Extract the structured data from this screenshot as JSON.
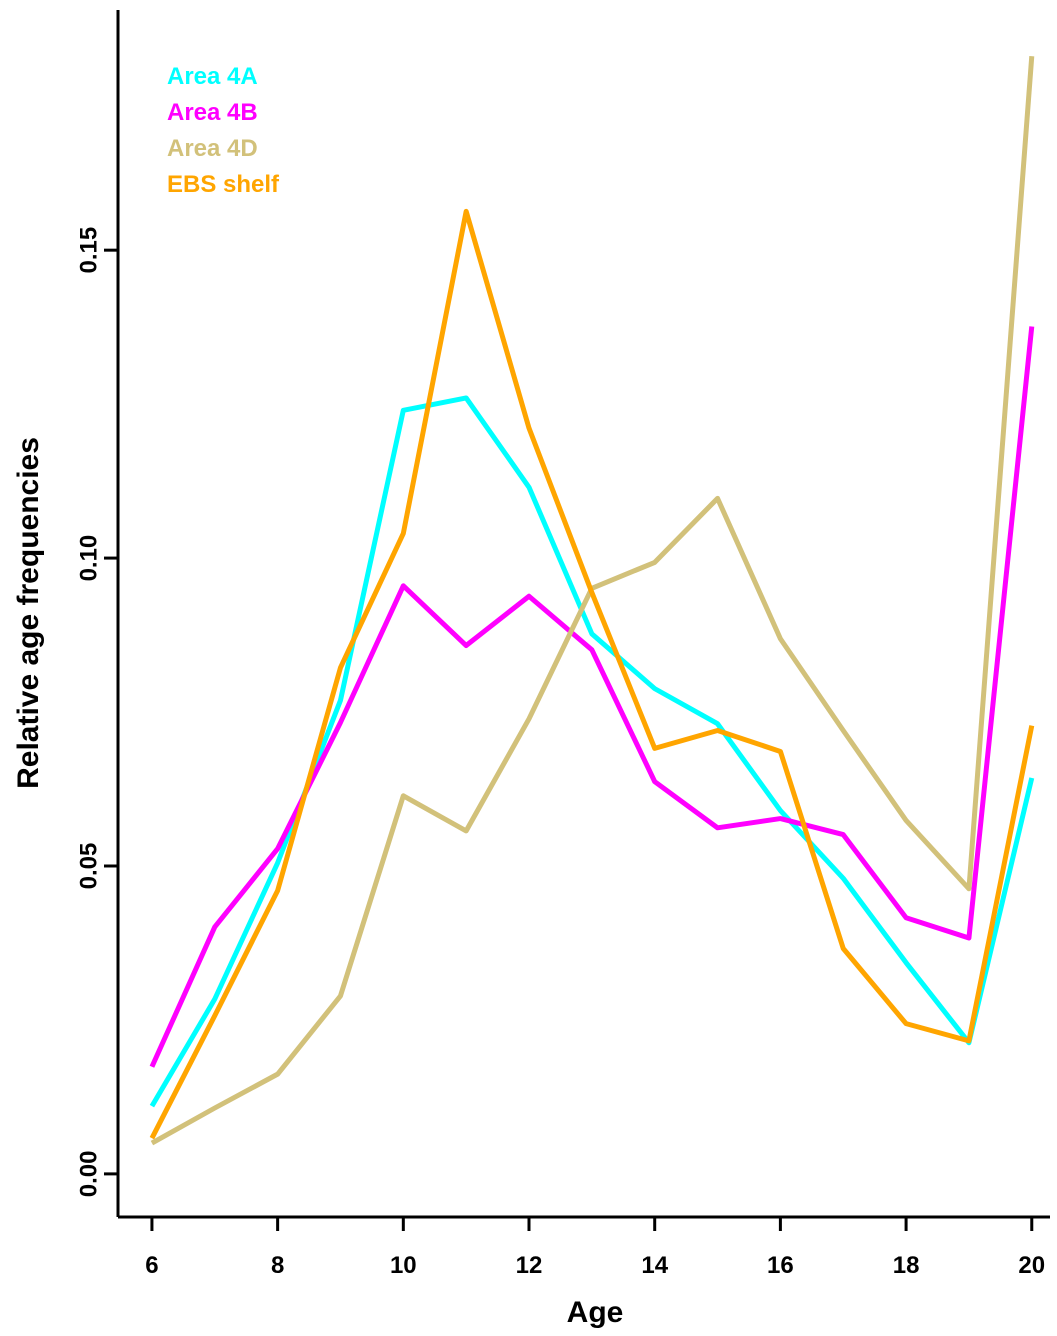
{
  "chart_data": {
    "type": "line",
    "x_label": "Age",
    "y_label": "Relative age frequencies",
    "x": [
      6,
      7,
      8,
      9,
      10,
      11,
      12,
      13,
      14,
      15,
      16,
      17,
      18,
      19,
      20
    ],
    "series": [
      {
        "name": "Area 4A",
        "color": "#00ffff",
        "values": [
          0.011,
          0.0284,
          0.0505,
          0.0769,
          0.124,
          0.126,
          0.1115,
          0.0877,
          0.0788,
          0.0731,
          0.059,
          0.048,
          0.0343,
          0.0213,
          0.0643
        ]
      },
      {
        "name": "Area 4B",
        "color": "#ff00ff",
        "values": [
          0.0174,
          0.0401,
          0.0528,
          0.0733,
          0.0955,
          0.0858,
          0.0938,
          0.0851,
          0.0637,
          0.0562,
          0.0577,
          0.0551,
          0.0416,
          0.0383,
          0.1376
        ]
      },
      {
        "name": "Area 4D",
        "color": "#d2c17a",
        "values": [
          0.005,
          0.0107,
          0.0162,
          0.0289,
          0.0614,
          0.0557,
          0.0739,
          0.0951,
          0.0993,
          0.1097,
          0.0869,
          0.072,
          0.0574,
          0.0463,
          0.1815
        ]
      },
      {
        "name": "EBS shelf",
        "color": "#ffa500",
        "values": [
          0.0058,
          0.0257,
          0.046,
          0.0822,
          0.104,
          0.1563,
          0.1211,
          0.0944,
          0.0691,
          0.072,
          0.0686,
          0.0366,
          0.0244,
          0.0216,
          0.0728
        ]
      }
    ],
    "xlim": [
      5.46,
      20.29
    ],
    "ylim": [
      -0.007,
      0.189
    ],
    "xticks": [
      6,
      8,
      10,
      12,
      14,
      16,
      18,
      20
    ],
    "yticks": [
      {
        "value": 0,
        "label": "0.00"
      },
      0.05,
      {
        "value": 0.1,
        "label": "0.10"
      },
      0.15
    ],
    "legend": "top-left"
  }
}
